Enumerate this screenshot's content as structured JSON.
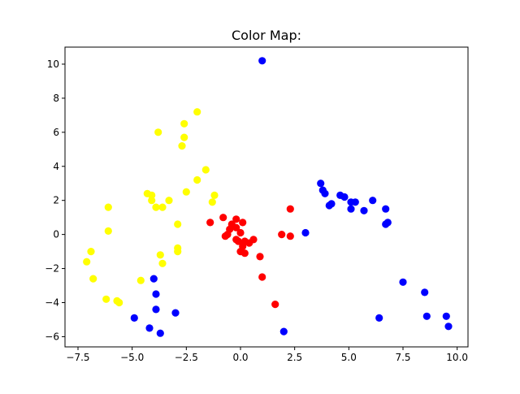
{
  "chart_data": {
    "type": "scatter",
    "title": "Color Map:",
    "xlabel": "",
    "ylabel": "",
    "xlim": [
      -8.1,
      10.5
    ],
    "ylim": [
      -6.6,
      11.0
    ],
    "xticks": [
      -7.5,
      -5.0,
      -2.5,
      0.0,
      2.5,
      5.0,
      7.5,
      10.0
    ],
    "xtick_labels": [
      "−7.5",
      "−5.0",
      "−2.5",
      "0.0",
      "2.5",
      "5.0",
      "7.5",
      "10.0"
    ],
    "yticks": [
      -6,
      -4,
      -2,
      0,
      2,
      4,
      6,
      8,
      10
    ],
    "ytick_labels": [
      "−6",
      "−4",
      "−2",
      "0",
      "2",
      "4",
      "6",
      "8",
      "10"
    ],
    "grid": false,
    "legend": "none",
    "series": [
      {
        "color": "#ffff00",
        "points": [
          [
            -2.0,
            7.2
          ],
          [
            -2.6,
            6.5
          ],
          [
            -3.8,
            6.0
          ],
          [
            -2.6,
            5.7
          ],
          [
            -2.7,
            5.2
          ],
          [
            -1.6,
            3.8
          ],
          [
            -2.0,
            3.2
          ],
          [
            -2.5,
            2.5
          ],
          [
            -1.2,
            2.3
          ],
          [
            -4.3,
            2.4
          ],
          [
            -4.1,
            2.3
          ],
          [
            -4.1,
            2.0
          ],
          [
            -3.3,
            2.0
          ],
          [
            -1.3,
            1.9
          ],
          [
            -6.1,
            1.6
          ],
          [
            -3.9,
            1.6
          ],
          [
            -3.6,
            1.6
          ],
          [
            -2.9,
            0.6
          ],
          [
            -6.1,
            0.2
          ],
          [
            -2.9,
            -0.8
          ],
          [
            -2.9,
            -1.0
          ],
          [
            -6.9,
            -1.0
          ],
          [
            -7.1,
            -1.6
          ],
          [
            -3.7,
            -1.2
          ],
          [
            -3.6,
            -1.7
          ],
          [
            -6.8,
            -2.6
          ],
          [
            -4.6,
            -2.7
          ],
          [
            -6.2,
            -3.8
          ],
          [
            -5.7,
            -3.9
          ],
          [
            -5.6,
            -4.0
          ]
        ]
      },
      {
        "color": "#ff0000",
        "points": [
          [
            2.3,
            1.5
          ],
          [
            -0.8,
            1.0
          ],
          [
            -1.4,
            0.7
          ],
          [
            -0.2,
            0.9
          ],
          [
            0.1,
            0.7
          ],
          [
            -0.4,
            0.6
          ],
          [
            -0.2,
            0.4
          ],
          [
            -0.5,
            0.3
          ],
          [
            0.0,
            0.1
          ],
          [
            -0.6,
            0.0
          ],
          [
            -0.7,
            -0.1
          ],
          [
            1.9,
            0.0
          ],
          [
            2.3,
            -0.1
          ],
          [
            -0.2,
            -0.3
          ],
          [
            -0.1,
            -0.4
          ],
          [
            0.2,
            -0.4
          ],
          [
            0.4,
            -0.5
          ],
          [
            0.6,
            -0.3
          ],
          [
            0.1,
            -0.7
          ],
          [
            0.0,
            -1.0
          ],
          [
            0.2,
            -1.1
          ],
          [
            0.9,
            -1.3
          ],
          [
            1.0,
            -2.5
          ],
          [
            1.6,
            -4.1
          ]
        ]
      },
      {
        "color": "#0000ff",
        "points": [
          [
            1.0,
            10.2
          ],
          [
            3.7,
            3.0
          ],
          [
            3.8,
            2.6
          ],
          [
            3.9,
            2.4
          ],
          [
            4.6,
            2.3
          ],
          [
            4.8,
            2.2
          ],
          [
            5.1,
            1.9
          ],
          [
            5.3,
            1.9
          ],
          [
            6.1,
            2.0
          ],
          [
            4.1,
            1.7
          ],
          [
            4.2,
            1.8
          ],
          [
            5.1,
            1.5
          ],
          [
            5.7,
            1.4
          ],
          [
            6.7,
            1.5
          ],
          [
            6.7,
            0.6
          ],
          [
            6.8,
            0.7
          ],
          [
            3.0,
            0.1
          ],
          [
            7.5,
            -2.8
          ],
          [
            8.5,
            -3.4
          ],
          [
            8.6,
            -4.8
          ],
          [
            6.4,
            -4.9
          ],
          [
            9.5,
            -4.8
          ],
          [
            9.6,
            -5.4
          ],
          [
            2.0,
            -5.7
          ],
          [
            -4.0,
            -2.6
          ],
          [
            -3.9,
            -3.5
          ],
          [
            -3.9,
            -4.4
          ],
          [
            -3.0,
            -4.6
          ],
          [
            -4.9,
            -4.9
          ],
          [
            -4.2,
            -5.5
          ],
          [
            -3.7,
            -5.8
          ]
        ]
      }
    ]
  }
}
